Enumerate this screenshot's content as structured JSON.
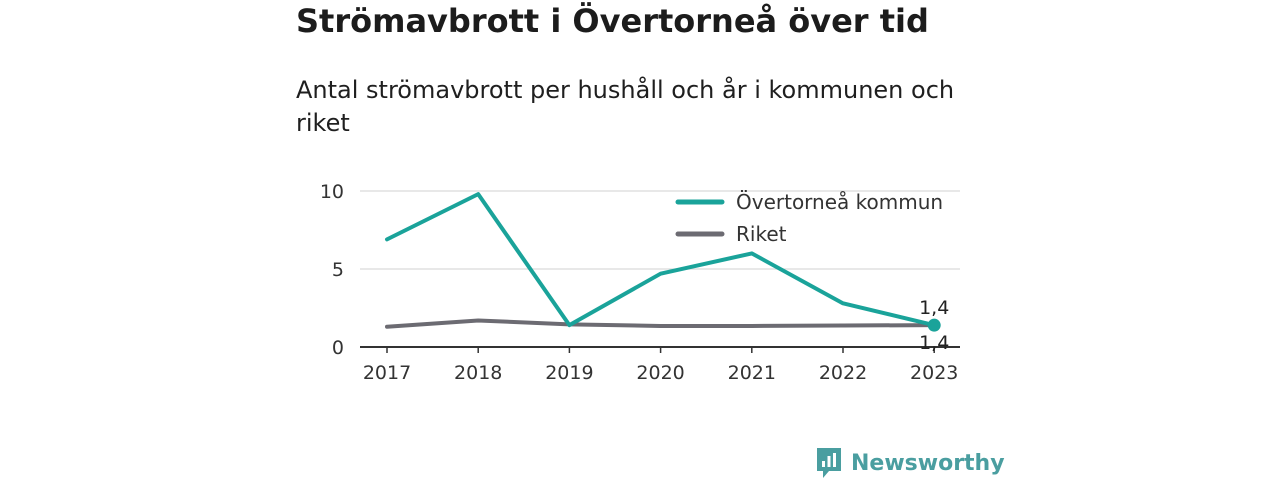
{
  "chart_data": {
    "type": "line",
    "title": "Strömavbrott i Övertorneå över tid",
    "subtitle": "Antal strömavbrott per hushåll och år i kommunen och riket",
    "categories": [
      "2017",
      "2018",
      "2019",
      "2020",
      "2021",
      "2022",
      "2023"
    ],
    "series": [
      {
        "name": "Övertorneå kommun",
        "color": "#1aa39a",
        "values": [
          6.9,
          9.8,
          1.4,
          4.7,
          6.0,
          2.8,
          1.4
        ]
      },
      {
        "name": "Riket",
        "color": "#6c6b72",
        "values": [
          1.3,
          1.7,
          1.45,
          1.35,
          1.35,
          1.38,
          1.4
        ]
      }
    ],
    "ylim": [
      0,
      10
    ],
    "yticks": [
      {
        "value": 0,
        "label": "0"
      },
      {
        "value": 5,
        "label": "5"
      },
      {
        "value": 10,
        "label": "10"
      }
    ],
    "end_labels": [
      "1,4",
      "1,4"
    ],
    "grid": true,
    "legend_position": "top-right"
  },
  "brand": {
    "name": "Newsworthy",
    "color": "#4a9ea0"
  }
}
